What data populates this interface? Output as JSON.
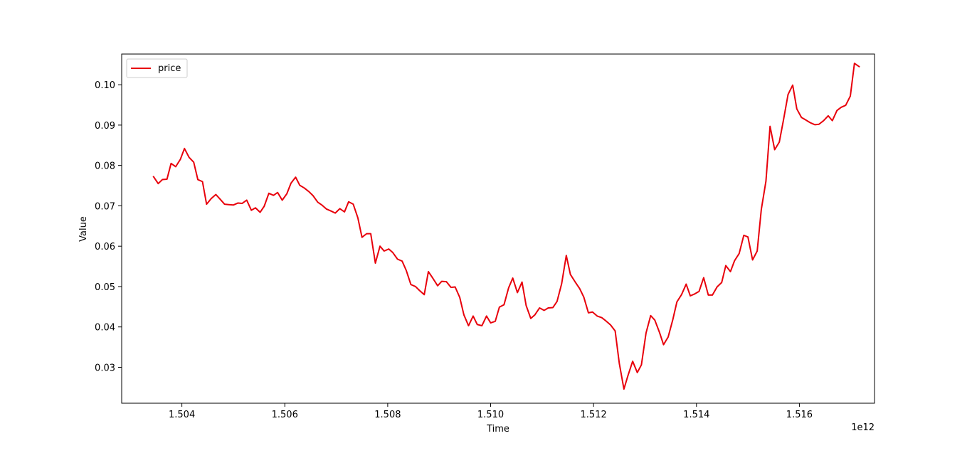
{
  "chart_data": {
    "type": "line",
    "title": "",
    "xlabel": "Time",
    "ylabel": "Value",
    "x_offset_label": "1e12",
    "xlim": [
      1.50283,
      1.51746
    ],
    "ylim": [
      0.0211,
      0.1076
    ],
    "x_ticks": [
      1.504,
      1.506,
      1.508,
      1.51,
      1.512,
      1.514,
      1.516
    ],
    "x_tick_labels": [
      "1.504",
      "1.506",
      "1.508",
      "1.510",
      "1.512",
      "1.514",
      "1.516"
    ],
    "y_ticks": [
      0.03,
      0.04,
      0.05,
      0.06,
      0.07,
      0.08,
      0.09,
      0.1
    ],
    "y_tick_labels": [
      "0.03",
      "0.04",
      "0.05",
      "0.06",
      "0.07",
      "0.08",
      "0.09",
      "0.10"
    ],
    "grid": false,
    "legend_position": "upper-left",
    "series": [
      {
        "name": "price",
        "color": "#e8000b",
        "x": [
          1.50345,
          1.50354,
          1.50362,
          1.50371,
          1.50379,
          1.50388,
          1.50397,
          1.50405,
          1.50414,
          1.50423,
          1.50431,
          1.5044,
          1.50448,
          1.50457,
          1.50466,
          1.50474,
          1.50483,
          1.50491,
          1.505,
          1.50509,
          1.50517,
          1.50526,
          1.50535,
          1.50543,
          1.50552,
          1.5056,
          1.50569,
          1.50578,
          1.50586,
          1.50595,
          1.50604,
          1.50612,
          1.50621,
          1.50629,
          1.50638,
          1.50647,
          1.50655,
          1.50664,
          1.50673,
          1.50681,
          1.5069,
          1.50698,
          1.50707,
          1.50716,
          1.50724,
          1.50733,
          1.50742,
          1.5075,
          1.50759,
          1.50767,
          1.50776,
          1.50785,
          1.50793,
          1.50802,
          1.5081,
          1.50819,
          1.50828,
          1.50836,
          1.50845,
          1.50854,
          1.50862,
          1.50871,
          1.50879,
          1.50888,
          1.50897,
          1.50905,
          1.50914,
          1.50923,
          1.50931,
          1.5094,
          1.50948,
          1.50957,
          1.50966,
          1.50974,
          1.50983,
          1.50992,
          1.51,
          1.51009,
          1.51017,
          1.51026,
          1.51035,
          1.51043,
          1.51052,
          1.51061,
          1.51069,
          1.51078,
          1.51086,
          1.51095,
          1.51104,
          1.51112,
          1.51121,
          1.51129,
          1.51138,
          1.51147,
          1.51155,
          1.51164,
          1.51173,
          1.51181,
          1.5119,
          1.51198,
          1.51207,
          1.51216,
          1.51224,
          1.51233,
          1.51242,
          1.5125,
          1.51259,
          1.51267,
          1.51276,
          1.51285,
          1.51293,
          1.51302,
          1.51311,
          1.51319,
          1.51328,
          1.51336,
          1.51345,
          1.51354,
          1.51362,
          1.51371,
          1.5138,
          1.51388,
          1.51397,
          1.51405,
          1.51414,
          1.51423,
          1.51431,
          1.5144,
          1.51449,
          1.51457,
          1.51466,
          1.51474,
          1.51483,
          1.51492,
          1.515,
          1.51509,
          1.51518,
          1.51526,
          1.51535,
          1.51543,
          1.51552,
          1.51561,
          1.51569,
          1.51578,
          1.51587,
          1.51595,
          1.51604,
          1.51612,
          1.51621,
          1.5163,
          1.51638,
          1.51647,
          1.51656,
          1.51664,
          1.51673,
          1.51681,
          1.5169,
          1.51699,
          1.51707,
          1.51716
        ],
        "values": [
          0.0772,
          0.0755,
          0.0765,
          0.0766,
          0.0805,
          0.0797,
          0.0815,
          0.0842,
          0.082,
          0.0808,
          0.0765,
          0.076,
          0.0704,
          0.0718,
          0.0728,
          0.0717,
          0.0704,
          0.0703,
          0.0702,
          0.0707,
          0.0706,
          0.0714,
          0.0689,
          0.0695,
          0.0684,
          0.0699,
          0.0731,
          0.0726,
          0.0733,
          0.0714,
          0.073,
          0.0756,
          0.0771,
          0.0751,
          0.0744,
          0.0735,
          0.0725,
          0.0709,
          0.0701,
          0.0692,
          0.0687,
          0.0682,
          0.0693,
          0.0685,
          0.071,
          0.0704,
          0.067,
          0.0622,
          0.0631,
          0.0631,
          0.0558,
          0.06,
          0.0588,
          0.0593,
          0.0584,
          0.0568,
          0.0563,
          0.054,
          0.0505,
          0.05,
          0.049,
          0.048,
          0.0537,
          0.052,
          0.0502,
          0.0513,
          0.0512,
          0.0498,
          0.0499,
          0.0473,
          0.043,
          0.0403,
          0.0427,
          0.0406,
          0.0403,
          0.0427,
          0.041,
          0.0414,
          0.0449,
          0.0455,
          0.0497,
          0.0521,
          0.0485,
          0.0511,
          0.0453,
          0.0421,
          0.043,
          0.0447,
          0.0441,
          0.0447,
          0.0448,
          0.0463,
          0.0507,
          0.0577,
          0.053,
          0.0512,
          0.0495,
          0.0474,
          0.0435,
          0.0437,
          0.0427,
          0.0423,
          0.0415,
          0.0405,
          0.039,
          0.031,
          0.0246,
          0.028,
          0.0315,
          0.0287,
          0.0306,
          0.0385,
          0.0428,
          0.0417,
          0.0387,
          0.0356,
          0.0375,
          0.0418,
          0.0462,
          0.048,
          0.0506,
          0.0477,
          0.0482,
          0.0488,
          0.0522,
          0.0479,
          0.0479,
          0.0499,
          0.051,
          0.0552,
          0.0537,
          0.0564,
          0.0582,
          0.0627,
          0.0623,
          0.0566,
          0.0588,
          0.0691,
          0.0761,
          0.0897,
          0.0839,
          0.0858,
          0.0912,
          0.0976,
          0.0999,
          0.094,
          0.0919,
          0.0913,
          0.0906,
          0.0901,
          0.0902,
          0.0911,
          0.0923,
          0.0911,
          0.0936,
          0.0944,
          0.0949,
          0.0972,
          0.1053,
          0.1045
        ]
      }
    ]
  }
}
